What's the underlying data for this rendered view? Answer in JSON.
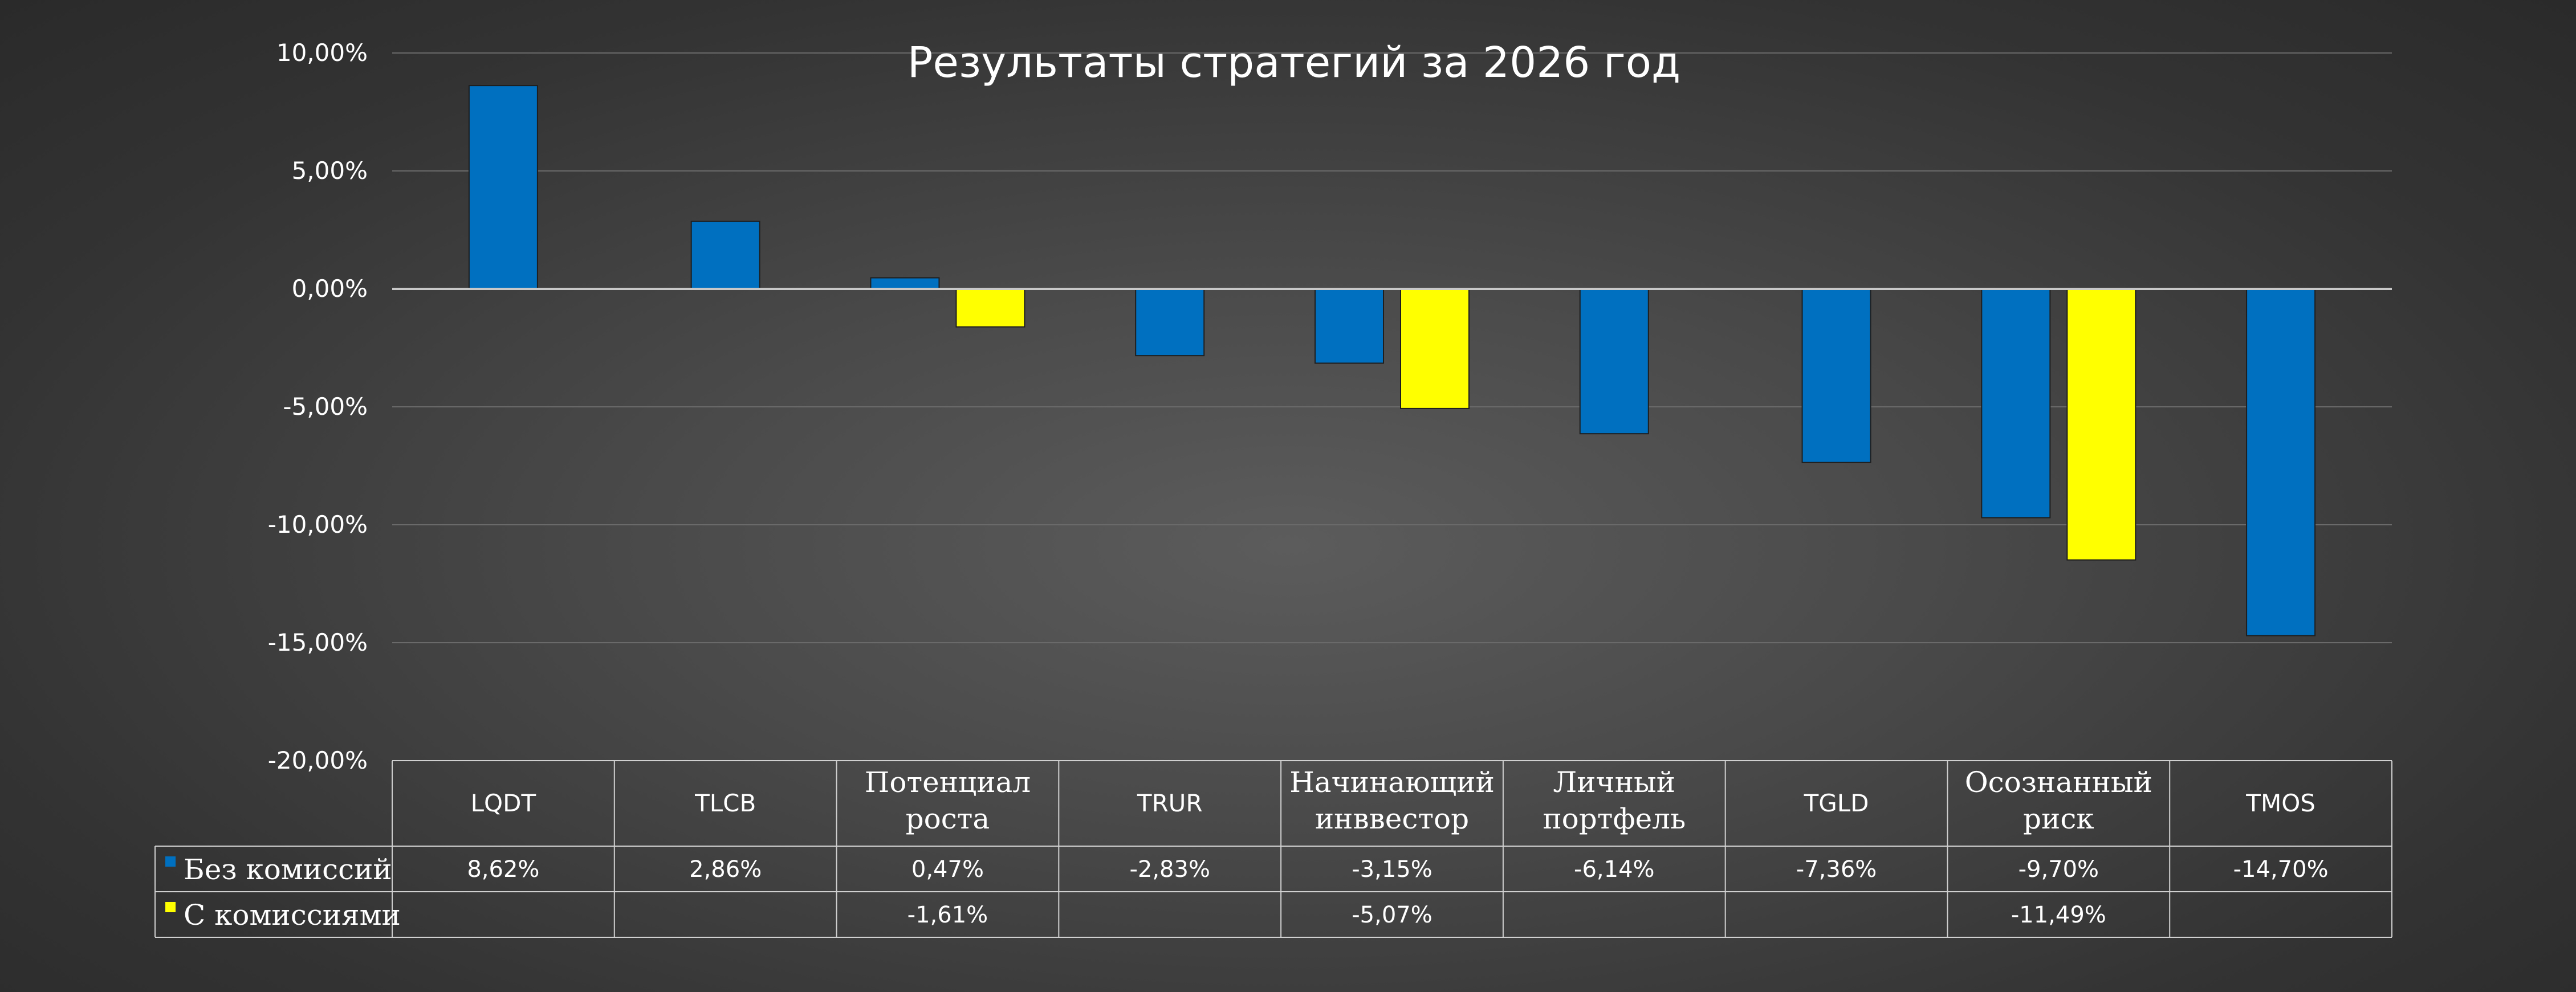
{
  "chart_data": {
    "type": "bar",
    "title": "Результаты стратегий за 2026 год",
    "categories": [
      [
        "LQDT"
      ],
      [
        "TLCB"
      ],
      [
        "Потенциал",
        "роста"
      ],
      [
        "TRUR"
      ],
      [
        "Начинающий",
        "инввестор"
      ],
      [
        "Личный",
        "портфель"
      ],
      [
        "TGLD"
      ],
      [
        "Осознанный",
        "риск"
      ],
      [
        "TMOS"
      ]
    ],
    "series": [
      {
        "name": "Без комиссий",
        "color": "#0070C0",
        "values": [
          8.62,
          2.86,
          0.47,
          -2.83,
          -3.15,
          -6.14,
          -7.36,
          -9.7,
          -14.7
        ],
        "labels": [
          "8,62%",
          "2,86%",
          "0,47%",
          "-2,83%",
          "-3,15%",
          "-6,14%",
          "-7,36%",
          "-9,70%",
          "-14,70%"
        ]
      },
      {
        "name": "С комиссиями",
        "color": "#FFFF00",
        "values": [
          null,
          null,
          -1.61,
          null,
          -5.07,
          null,
          null,
          -11.49,
          null
        ],
        "labels": [
          "",
          "",
          "-1,61%",
          "",
          "-5,07%",
          "",
          "",
          "-11,49%",
          ""
        ]
      }
    ],
    "ylim": [
      -20,
      10
    ],
    "yticks": [
      10,
      5,
      0,
      -5,
      -10,
      -15,
      -20
    ],
    "ytick_labels": [
      "10,00%",
      "5,00%",
      "0,00%",
      "-5,00%",
      "-10,00%",
      "-15,00%",
      "-20,00%"
    ],
    "grid": true,
    "data_table": true
  }
}
